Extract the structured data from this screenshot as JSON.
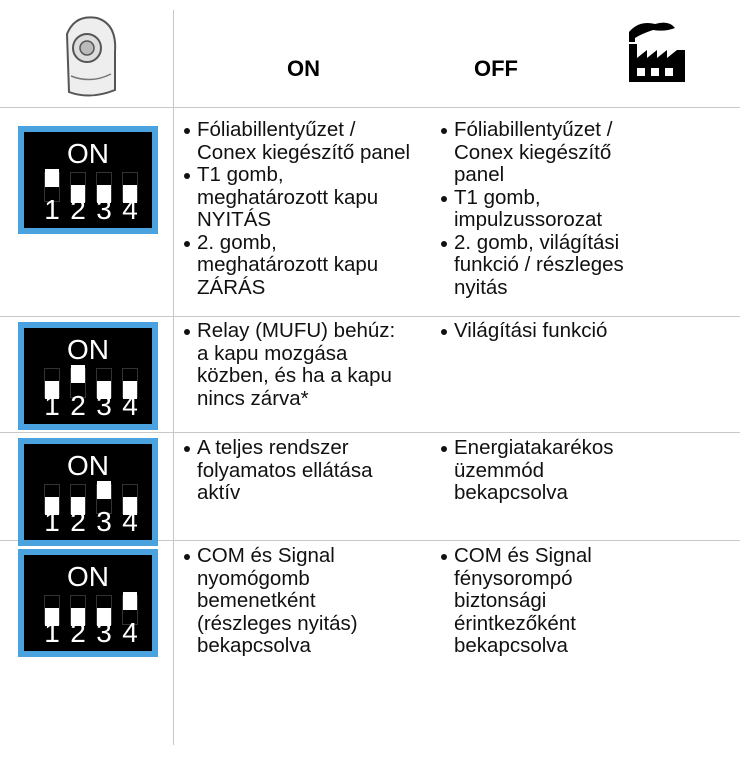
{
  "header": {
    "on": "ON",
    "off": "OFF"
  },
  "rows": [
    {
      "switch": {
        "label": "ON",
        "numbers": [
          "1",
          "2",
          "3",
          "4"
        ]
      },
      "on": [
        [
          "Fóliabillentyűzet /",
          "Conex kiegészítő panel"
        ],
        [
          "T1 gomb,",
          "meghatározott kapu",
          "NYITÁS"
        ],
        [
          "2. gomb,",
          "meghatározott kapu",
          "ZÁRÁS"
        ]
      ],
      "off": [
        [
          "Fóliabillentyűzet /",
          "Conex kiegészítő",
          "panel"
        ],
        [
          "T1 gomb,",
          "impulzussorozat"
        ],
        [
          "2. gomb, világítási",
          "funkció / részleges",
          "nyitás"
        ]
      ]
    },
    {
      "switch": {
        "label": "ON",
        "numbers": [
          "1",
          "2",
          "3",
          "4"
        ]
      },
      "on": [
        [
          "Relay (MUFU) behúz:",
          "a kapu mozgása",
          "közben, és ha a kapu",
          "nincs zárva*"
        ]
      ],
      "off": [
        [
          "Világítási funkció"
        ]
      ]
    },
    {
      "switch": {
        "label": "ON",
        "numbers": [
          "1",
          "2",
          "3",
          "4"
        ]
      },
      "on": [
        [
          "A teljes rendszer",
          "folyamatos ellátása",
          "aktív"
        ]
      ],
      "off": [
        [
          "Energiatakarékos",
          "üzemmód",
          "bekapcsolva"
        ]
      ]
    },
    {
      "switch": {
        "label": "ON",
        "numbers": [
          "1",
          "2",
          "3",
          "4"
        ]
      },
      "on": [
        [
          "COM és Signal",
          "nyomógomb",
          "bemenetként",
          "(részleges nyitás)",
          "bekapcsolva"
        ]
      ],
      "off": [
        [
          "COM és Signal",
          "fénysorompó",
          "biztonsági",
          "érintkezőként",
          "bekapcsolva"
        ]
      ]
    }
  ]
}
